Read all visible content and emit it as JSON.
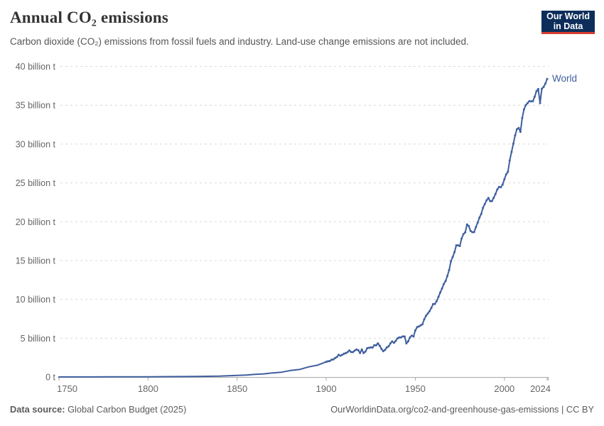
{
  "header": {
    "title": "Annual CO₂ emissions",
    "subtitle": "Carbon dioxide (CO₂) emissions from fossil fuels and industry. Land-use change emissions are not included.",
    "logo": {
      "line1": "Our World",
      "line2": "in Data",
      "bg_color": "#0d2e5a",
      "accent_color": "#d93a2d",
      "text_color": "#ffffff"
    }
  },
  "footer": {
    "source_label": "Data source:",
    "source": "Global Carbon Budget (2025)",
    "link": "OurWorldinData.org/co2-and-greenhouse-gas-emissions | CC BY"
  },
  "chart_data": {
    "type": "line",
    "title": "Annual CO₂ emissions",
    "ylabel": "",
    "xlabel": "",
    "units": "billion tonnes CO₂",
    "xlim": [
      1750,
      2024
    ],
    "ylim": [
      0,
      40
    ],
    "grid": "horizontal dashed",
    "grid_color": "#d9d9d9",
    "axis_color": "#a8a8a8",
    "tick_label_color": "#666666",
    "xticks": [
      1750,
      1800,
      1850,
      1900,
      1950,
      2000,
      2024
    ],
    "yticks": [
      0,
      5,
      10,
      15,
      20,
      25,
      30,
      35,
      40
    ],
    "ytick_labels": [
      "0 t",
      "5 billion t",
      "10 billion t",
      "15 billion t",
      "20 billion t",
      "25 billion t",
      "30 billion t",
      "35 billion t",
      "40 billion t"
    ],
    "series": [
      {
        "name": "World",
        "color": "#3f5e9e",
        "x": [
          1750,
          1760,
          1770,
          1780,
          1790,
          1800,
          1810,
          1820,
          1830,
          1840,
          1850,
          1855,
          1860,
          1865,
          1870,
          1875,
          1880,
          1885,
          1890,
          1895,
          1900,
          1901,
          1902,
          1903,
          1904,
          1905,
          1906,
          1907,
          1908,
          1909,
          1910,
          1911,
          1912,
          1913,
          1914,
          1915,
          1916,
          1917,
          1918,
          1919,
          1920,
          1921,
          1922,
          1923,
          1924,
          1925,
          1926,
          1927,
          1928,
          1929,
          1930,
          1931,
          1932,
          1933,
          1934,
          1935,
          1936,
          1937,
          1938,
          1939,
          1940,
          1941,
          1942,
          1943,
          1944,
          1945,
          1946,
          1947,
          1948,
          1949,
          1950,
          1951,
          1952,
          1953,
          1954,
          1955,
          1956,
          1957,
          1958,
          1959,
          1960,
          1961,
          1962,
          1963,
          1964,
          1965,
          1966,
          1967,
          1968,
          1969,
          1970,
          1971,
          1972,
          1973,
          1974,
          1975,
          1976,
          1977,
          1978,
          1979,
          1980,
          1981,
          1982,
          1983,
          1984,
          1985,
          1986,
          1987,
          1988,
          1989,
          1990,
          1991,
          1992,
          1993,
          1994,
          1995,
          1996,
          1997,
          1998,
          1999,
          2000,
          2001,
          2002,
          2003,
          2004,
          2005,
          2006,
          2007,
          2008,
          2009,
          2010,
          2011,
          2012,
          2013,
          2014,
          2015,
          2016,
          2017,
          2018,
          2019,
          2020,
          2021,
          2022,
          2023,
          2024
        ],
        "y": [
          0.01,
          0.011,
          0.012,
          0.014,
          0.019,
          0.03,
          0.05,
          0.054,
          0.08,
          0.11,
          0.2,
          0.25,
          0.34,
          0.4,
          0.53,
          0.62,
          0.84,
          0.97,
          1.3,
          1.52,
          1.96,
          2.02,
          2.06,
          2.23,
          2.26,
          2.44,
          2.57,
          2.85,
          2.75,
          2.86,
          3.01,
          3.07,
          3.21,
          3.42,
          3.21,
          3.21,
          3.4,
          3.55,
          3.45,
          3.09,
          3.55,
          3.08,
          3.28,
          3.71,
          3.76,
          3.8,
          3.79,
          4.1,
          4.08,
          4.33,
          4.02,
          3.64,
          3.33,
          3.48,
          3.8,
          3.95,
          4.33,
          4.58,
          4.4,
          4.65,
          4.97,
          5.1,
          5.1,
          5.24,
          5.21,
          4.33,
          4.6,
          5.08,
          5.33,
          5.22,
          6.0,
          6.42,
          6.52,
          6.65,
          6.78,
          7.42,
          7.88,
          8.17,
          8.48,
          8.9,
          9.39,
          9.41,
          9.78,
          10.33,
          10.89,
          11.4,
          11.99,
          12.36,
          13.02,
          13.79,
          14.9,
          15.46,
          16.08,
          16.95,
          16.96,
          16.87,
          17.83,
          18.4,
          18.62,
          19.65,
          19.44,
          18.82,
          18.65,
          18.66,
          19.29,
          19.88,
          20.52,
          20.99,
          21.79,
          22.26,
          22.76,
          23.06,
          22.66,
          22.65,
          23.09,
          23.57,
          24.15,
          24.48,
          24.44,
          24.78,
          25.45,
          26.1,
          26.42,
          27.89,
          28.98,
          30.04,
          31.1,
          31.91,
          32.07,
          31.56,
          33.34,
          34.46,
          35.01,
          35.26,
          35.52,
          35.5,
          35.52,
          36.1,
          36.82,
          37.08,
          35.26,
          37.12,
          37.35,
          37.79,
          38.38
        ]
      }
    ],
    "legend_position": "end-of-line label"
  }
}
